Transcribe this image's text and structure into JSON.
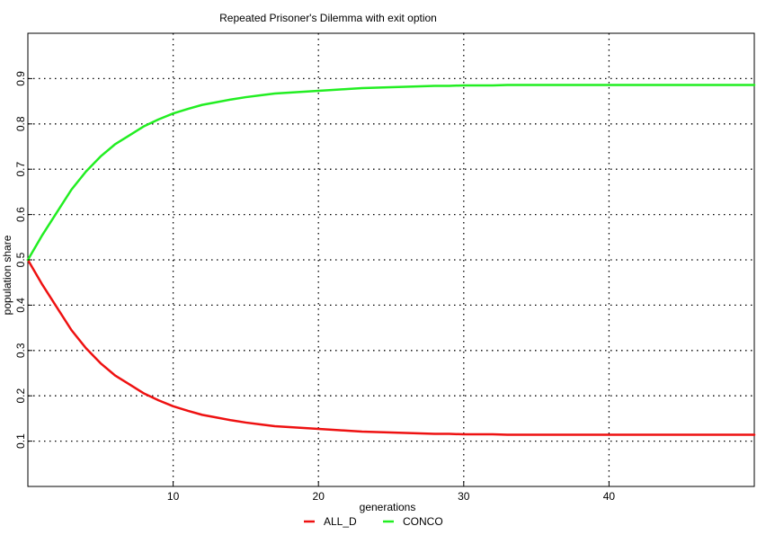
{
  "chart_data": {
    "type": "line",
    "title": "Repeated Prisoner's Dilemma with exit option",
    "xlabel": "generations",
    "ylabel": "population share",
    "xlim": [
      0,
      50
    ],
    "ylim": [
      0,
      1
    ],
    "xticks": [
      10,
      20,
      30,
      40
    ],
    "yticks": [
      0.1,
      0.2,
      0.3,
      0.4,
      0.5,
      0.6,
      0.7,
      0.8,
      0.9
    ],
    "grid": true,
    "legend_position": "bottom",
    "series": [
      {
        "name": "ALL_D",
        "color": "#ee1111",
        "x": [
          0,
          1,
          2,
          3,
          4,
          5,
          6,
          7,
          8,
          9,
          10,
          11,
          12,
          13,
          14,
          15,
          16,
          17,
          18,
          19,
          20,
          21,
          22,
          23,
          24,
          25,
          26,
          27,
          28,
          29,
          30,
          31,
          32,
          33,
          34,
          35,
          36,
          37,
          38,
          39,
          40,
          41,
          42,
          43,
          44,
          45,
          46,
          47,
          48,
          49,
          50
        ],
        "values": [
          0.5,
          0.445,
          0.395,
          0.345,
          0.305,
          0.272,
          0.245,
          0.225,
          0.205,
          0.19,
          0.177,
          0.167,
          0.158,
          0.152,
          0.146,
          0.141,
          0.137,
          0.133,
          0.131,
          0.129,
          0.127,
          0.125,
          0.123,
          0.121,
          0.12,
          0.119,
          0.118,
          0.117,
          0.116,
          0.116,
          0.115,
          0.115,
          0.115,
          0.114,
          0.114,
          0.114,
          0.114,
          0.114,
          0.114,
          0.114,
          0.114,
          0.114,
          0.114,
          0.114,
          0.114,
          0.114,
          0.114,
          0.114,
          0.114,
          0.114,
          0.114
        ]
      },
      {
        "name": "CONCO",
        "color": "#22ee22",
        "x": [
          0,
          1,
          2,
          3,
          4,
          5,
          6,
          7,
          8,
          9,
          10,
          11,
          12,
          13,
          14,
          15,
          16,
          17,
          18,
          19,
          20,
          21,
          22,
          23,
          24,
          25,
          26,
          27,
          28,
          29,
          30,
          31,
          32,
          33,
          34,
          35,
          36,
          37,
          38,
          39,
          40,
          41,
          42,
          43,
          44,
          45,
          46,
          47,
          48,
          49,
          50
        ],
        "values": [
          0.5,
          0.555,
          0.605,
          0.655,
          0.695,
          0.728,
          0.755,
          0.775,
          0.795,
          0.81,
          0.823,
          0.833,
          0.842,
          0.848,
          0.854,
          0.859,
          0.863,
          0.867,
          0.869,
          0.871,
          0.873,
          0.875,
          0.877,
          0.879,
          0.88,
          0.881,
          0.882,
          0.883,
          0.884,
          0.884,
          0.885,
          0.885,
          0.885,
          0.886,
          0.886,
          0.886,
          0.886,
          0.886,
          0.886,
          0.886,
          0.886,
          0.886,
          0.886,
          0.886,
          0.886,
          0.886,
          0.886,
          0.886,
          0.886,
          0.886,
          0.886
        ]
      }
    ]
  }
}
